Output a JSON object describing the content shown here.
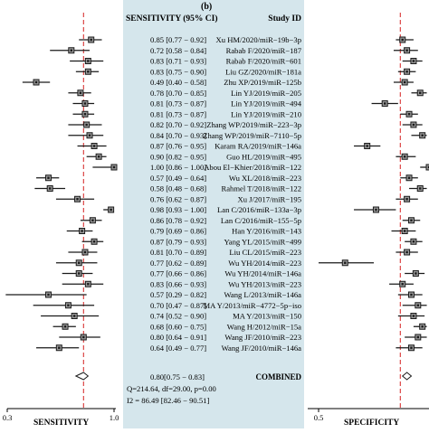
{
  "figure_label": "(b)",
  "colors": {
    "center_panel": "#d5e6ec",
    "ref_line": "#d42020",
    "marker": "#1a1a1a",
    "combined_fill": "#ffffff"
  },
  "chart_data": [
    {
      "type": "forest",
      "panel": "sensitivity",
      "xlabel": "SENSITIVITY",
      "xticks": [
        {
          "value": 0.3,
          "label": "0.3"
        },
        {
          "value": 1.0,
          "label": "1.0"
        }
      ],
      "xlim": [
        0.3,
        1.0
      ],
      "ref_line": 0.8,
      "header_left": "SENSITIVITY (95% CI)",
      "header_right": "Study ID",
      "studies": [
        {
          "id": "Xu HM/2020/miR−19b−3p",
          "est": 0.85,
          "lo": 0.77,
          "hi": 0.92,
          "label": "0.85 [0.77 − 0.92]"
        },
        {
          "id": "Rabab F/2020/miR−187",
          "est": 0.72,
          "lo": 0.58,
          "hi": 0.84,
          "label": "0.72 [0.58 − 0.84]"
        },
        {
          "id": "Rabab F/2020/miR−601",
          "est": 0.83,
          "lo": 0.71,
          "hi": 0.93,
          "label": "0.83 [0.71 − 0.93]"
        },
        {
          "id": "Liu GZ/2020/miR−181a",
          "est": 0.83,
          "lo": 0.75,
          "hi": 0.9,
          "label": "0.83 [0.75 − 0.90]"
        },
        {
          "id": "Zhu XP/2019/miR−125b",
          "est": 0.49,
          "lo": 0.4,
          "hi": 0.58,
          "label": "0.49 [0.40 − 0.58]"
        },
        {
          "id": "Lin YJ/2019/miR−205",
          "est": 0.78,
          "lo": 0.7,
          "hi": 0.85,
          "label": "0.78 [0.70 − 0.85]"
        },
        {
          "id": "Lin YJ/2019/miR−494",
          "est": 0.81,
          "lo": 0.73,
          "hi": 0.87,
          "label": "0.81 [0.73 − 0.87]"
        },
        {
          "id": "Lin YJ/2019/miR−210",
          "est": 0.81,
          "lo": 0.73,
          "hi": 0.87,
          "label": "0.81 [0.73 − 0.87]"
        },
        {
          "id": "Zhang WP/2019/miR−223−3p",
          "est": 0.82,
          "lo": 0.7,
          "hi": 0.92,
          "label": "0.82 [0.70 − 0.92]"
        },
        {
          "id": "Zhang WP/2019/miR−7110−5p",
          "est": 0.84,
          "lo": 0.7,
          "hi": 0.93,
          "label": "0.84 [0.70 − 0.93]"
        },
        {
          "id": "Karam RA/2019/miR−146a",
          "est": 0.87,
          "lo": 0.76,
          "hi": 0.95,
          "label": "0.87 [0.76 − 0.95]"
        },
        {
          "id": "Guo HL/2019/miR−495",
          "est": 0.9,
          "lo": 0.82,
          "hi": 0.95,
          "label": "0.90 [0.82 − 0.95]"
        },
        {
          "id": "Abou El−Khier/2018/miR−122",
          "est": 1.0,
          "lo": 0.86,
          "hi": 1.0,
          "label": "1.00 [0.86 − 1.00]"
        },
        {
          "id": "Wu XL/2018/miR−223",
          "est": 0.57,
          "lo": 0.49,
          "hi": 0.64,
          "label": "0.57 [0.49 − 0.64]"
        },
        {
          "id": "Rahmel T/2018/miR−122",
          "est": 0.58,
          "lo": 0.48,
          "hi": 0.68,
          "label": "0.58 [0.48 − 0.68]"
        },
        {
          "id": "Xu J/2017/miR−195",
          "est": 0.76,
          "lo": 0.62,
          "hi": 0.87,
          "label": "0.76 [0.62 − 0.87]"
        },
        {
          "id": "Lan C/2016/miR−133a−3p",
          "est": 0.98,
          "lo": 0.93,
          "hi": 1.0,
          "label": "0.98 [0.93 − 1.00]"
        },
        {
          "id": "Lan C/2016/miR−155−5p",
          "est": 0.86,
          "lo": 0.78,
          "hi": 0.92,
          "label": "0.86 [0.78 − 0.92]"
        },
        {
          "id": "Han Y/2016/miR−143",
          "est": 0.79,
          "lo": 0.69,
          "hi": 0.86,
          "label": "0.79 [0.69 − 0.86]"
        },
        {
          "id": "Yang YL/2015/miR−499",
          "est": 0.87,
          "lo": 0.79,
          "hi": 0.93,
          "label": "0.87 [0.79 − 0.93]"
        },
        {
          "id": "Liu CL/2015/miR−223",
          "est": 0.81,
          "lo": 0.7,
          "hi": 0.89,
          "label": "0.81 [0.70 − 0.89]"
        },
        {
          "id": "Wu YH/2014/miR−223",
          "est": 0.77,
          "lo": 0.62,
          "hi": 0.89,
          "label": "0.77 [0.62 − 0.89]"
        },
        {
          "id": "Wu YH/2014/miR−146a",
          "est": 0.77,
          "lo": 0.66,
          "hi": 0.86,
          "label": "0.77 [0.66 − 0.86]"
        },
        {
          "id": "Wu YH/2013/miR−223",
          "est": 0.83,
          "lo": 0.66,
          "hi": 0.93,
          "label": "0.83 [0.66 − 0.93]"
        },
        {
          "id": "Wang L/2013/miR−146a",
          "est": 0.57,
          "lo": 0.29,
          "hi": 0.82,
          "label": "0.57 [0.29 − 0.82]"
        },
        {
          "id": "MA Y/2013/miR−4772−5p−iso",
          "est": 0.7,
          "lo": 0.47,
          "hi": 0.87,
          "label": "0.70 [0.47 − 0.87]"
        },
        {
          "id": "MA Y/2013/miR−150",
          "est": 0.74,
          "lo": 0.52,
          "hi": 0.9,
          "label": "0.74 [0.52 − 0.90]"
        },
        {
          "id": "Wang H/2012/miR−15a",
          "est": 0.68,
          "lo": 0.6,
          "hi": 0.75,
          "label": "0.68 [0.60 − 0.75]"
        },
        {
          "id": "Wang JF/2010/miR−223",
          "est": 0.8,
          "lo": 0.64,
          "hi": 0.91,
          "label": "0.80 [0.64 − 0.91]"
        },
        {
          "id": "Wang JF/2010/miR−146a",
          "est": 0.64,
          "lo": 0.49,
          "hi": 0.77,
          "label": "0.64 [0.49 − 0.77]"
        }
      ],
      "combined": {
        "id": "COMBINED",
        "est": 0.8,
        "lo": 0.75,
        "hi": 0.83,
        "label": "0.80[0.75 − 0.83]",
        "stat1": "Q=214.64, df=29.00, p=0.00",
        "stat2": "I2 = 86.49 [82.46 − 90.51]"
      }
    },
    {
      "type": "forest",
      "panel": "specificity",
      "xlabel": "SPECIFICITY",
      "xticks": [
        {
          "value": 0.5,
          "label": "0.5"
        }
      ],
      "xlim": [
        0.5,
        1.0
      ],
      "ref_line": 0.87,
      "studies": [
        {
          "est": 0.88,
          "lo": 0.85,
          "hi": 0.93
        },
        {
          "est": 0.9,
          "lo": 0.84,
          "hi": 0.95
        },
        {
          "est": 0.93,
          "lo": 0.88,
          "hi": 0.97
        },
        {
          "est": 0.9,
          "lo": 0.86,
          "hi": 0.94
        },
        {
          "est": 0.89,
          "lo": 0.84,
          "hi": 0.93
        },
        {
          "est": 0.96,
          "lo": 0.92,
          "hi": 0.99
        },
        {
          "est": 0.8,
          "lo": 0.74,
          "hi": 0.86
        },
        {
          "est": 0.91,
          "lo": 0.87,
          "hi": 0.95
        },
        {
          "est": 0.93,
          "lo": 0.88,
          "hi": 0.97
        },
        {
          "est": 0.97,
          "lo": 0.92,
          "hi": 0.99
        },
        {
          "est": 0.72,
          "lo": 0.66,
          "hi": 0.78
        },
        {
          "est": 0.89,
          "lo": 0.85,
          "hi": 0.94
        },
        {
          "est": 1.0,
          "lo": 0.96,
          "hi": 1.0
        },
        {
          "est": 0.91,
          "lo": 0.87,
          "hi": 0.95
        },
        {
          "est": 0.96,
          "lo": 0.91,
          "hi": 0.99
        },
        {
          "est": 0.9,
          "lo": 0.85,
          "hi": 0.95
        },
        {
          "est": 0.76,
          "lo": 0.66,
          "hi": 0.85
        },
        {
          "est": 0.92,
          "lo": 0.88,
          "hi": 0.96
        },
        {
          "est": 0.89,
          "lo": 0.83,
          "hi": 0.94
        },
        {
          "est": 0.93,
          "lo": 0.89,
          "hi": 0.97
        },
        {
          "est": 0.9,
          "lo": 0.85,
          "hi": 0.95
        },
        {
          "est": 0.62,
          "lo": 0.5,
          "hi": 0.75
        },
        {
          "est": 0.94,
          "lo": 0.89,
          "hi": 0.98
        },
        {
          "est": 0.88,
          "lo": 0.82,
          "hi": 0.93
        },
        {
          "est": 0.92,
          "lo": 0.86,
          "hi": 0.97
        },
        {
          "est": 0.95,
          "lo": 0.88,
          "hi": 0.99
        },
        {
          "est": 0.93,
          "lo": 0.86,
          "hi": 0.98
        },
        {
          "est": 0.97,
          "lo": 0.93,
          "hi": 0.99
        },
        {
          "est": 0.95,
          "lo": 0.89,
          "hi": 0.99
        },
        {
          "est": 0.92,
          "lo": 0.85,
          "hi": 0.97
        }
      ],
      "combined": {
        "est": 0.9,
        "lo": 0.88,
        "hi": 0.92
      }
    }
  ]
}
